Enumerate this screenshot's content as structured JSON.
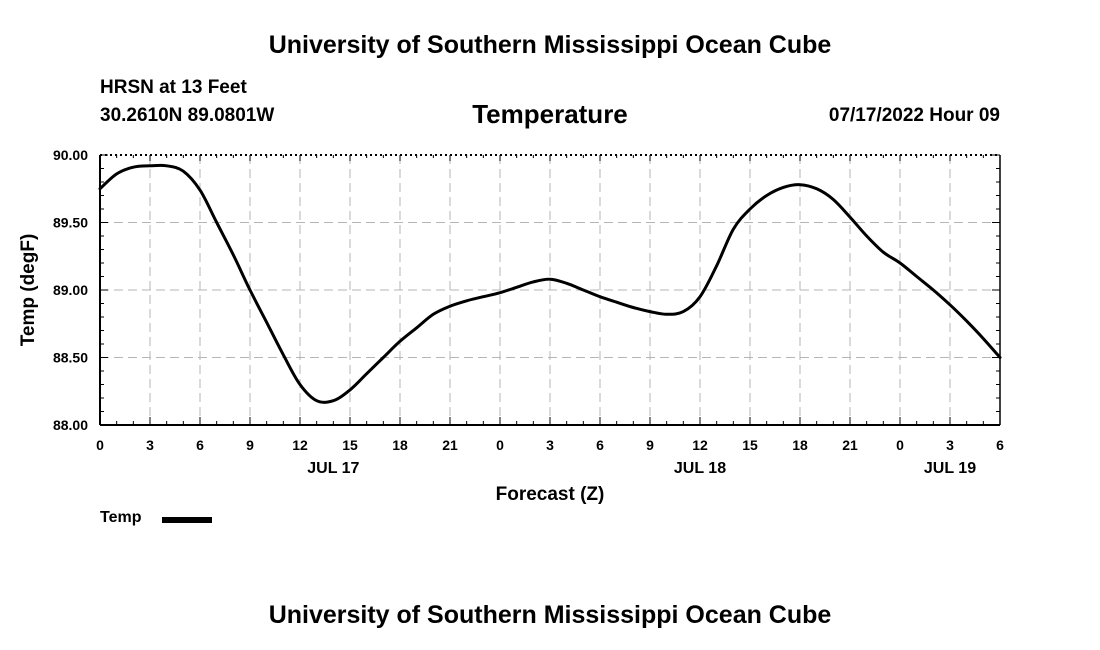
{
  "header": {
    "organization": "University of Southern Mississippi Ocean Cube",
    "station_name": "HRSN at 13 Feet",
    "station_coords": "30.2610N  89.0801W",
    "datetime": "07/17/2022 Hour 09"
  },
  "footer": {
    "organization": "University of Southern Mississippi Ocean Cube"
  },
  "legend": {
    "label": "Temp",
    "color": "#000000"
  },
  "chart_data": {
    "type": "line",
    "title": "Temperature",
    "xlabel": "Forecast (Z)",
    "ylabel": "Temp (degF)",
    "ylim": [
      88.0,
      90.0
    ],
    "xlim": [
      0,
      54
    ],
    "y_ticks": [
      "88.00",
      "88.50",
      "89.00",
      "89.50",
      "90.00"
    ],
    "x_ticks": [
      0,
      3,
      6,
      9,
      12,
      15,
      18,
      21,
      24,
      27,
      30,
      33,
      36,
      39,
      42,
      45,
      48,
      51,
      54
    ],
    "x_tick_labels": [
      "0",
      "3",
      "6",
      "9",
      "12",
      "15",
      "18",
      "21",
      "0",
      "3",
      "6",
      "9",
      "12",
      "15",
      "18",
      "21",
      "0",
      "3",
      "6"
    ],
    "date_labels": [
      {
        "x": 14,
        "label": "JUL 17"
      },
      {
        "x": 36,
        "label": "JUL 18"
      },
      {
        "x": 51,
        "label": "JUL 19"
      }
    ],
    "grid": true,
    "series": [
      {
        "name": "Temp",
        "color": "#000000",
        "x": [
          0,
          1,
          2,
          3,
          4,
          5,
          6,
          7,
          8,
          9,
          10,
          11,
          12,
          13,
          14,
          15,
          16,
          17,
          18,
          19,
          20,
          21,
          22,
          23,
          24,
          25,
          26,
          27,
          28,
          29,
          30,
          31,
          32,
          33,
          34,
          35,
          36,
          37,
          38,
          39,
          40,
          41,
          42,
          43,
          44,
          45,
          46,
          47,
          48,
          49,
          50,
          51,
          52,
          53,
          54
        ],
        "values": [
          89.75,
          89.86,
          89.91,
          89.92,
          89.92,
          89.88,
          89.74,
          89.5,
          89.26,
          89.0,
          88.76,
          88.52,
          88.3,
          88.18,
          88.18,
          88.26,
          88.38,
          88.5,
          88.62,
          88.72,
          88.82,
          88.88,
          88.92,
          88.95,
          88.98,
          89.02,
          89.06,
          89.08,
          89.05,
          89.0,
          88.95,
          88.91,
          88.87,
          88.84,
          88.82,
          88.84,
          88.95,
          89.18,
          89.45,
          89.6,
          89.7,
          89.76,
          89.78,
          89.75,
          89.67,
          89.54,
          89.4,
          89.28,
          89.2,
          89.1,
          89.0,
          88.89,
          88.77,
          88.64,
          88.5
        ]
      }
    ]
  }
}
